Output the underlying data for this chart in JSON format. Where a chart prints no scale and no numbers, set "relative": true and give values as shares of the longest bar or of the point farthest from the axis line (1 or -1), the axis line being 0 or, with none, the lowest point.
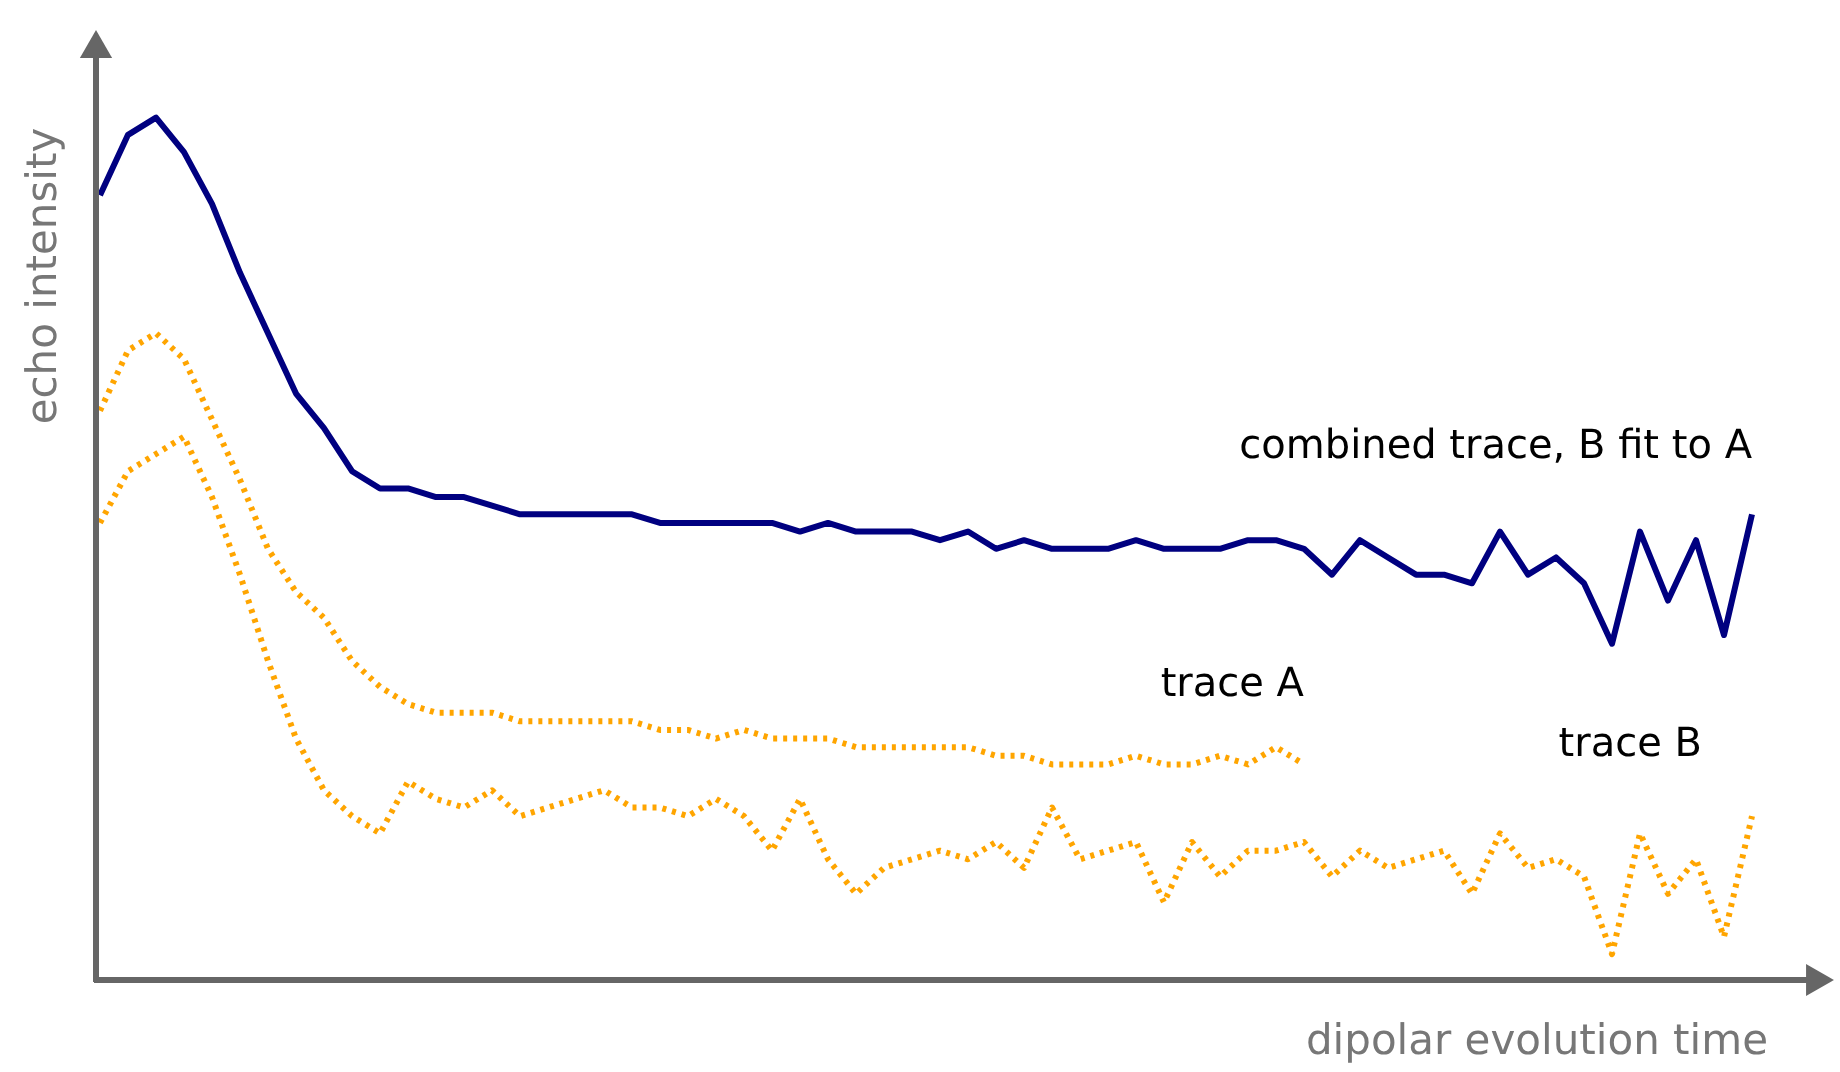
{
  "chart_data": {
    "type": "line",
    "relative": true,
    "xlabel": "dipolar evolution time",
    "ylabel": "echo intensity",
    "legend": false,
    "categories": [
      null,
      null,
      null,
      null,
      null,
      null,
      null,
      null,
      null,
      null,
      null,
      null,
      null,
      null,
      null,
      null,
      null,
      null,
      null,
      null,
      null,
      null,
      null,
      null,
      null,
      null,
      null,
      null,
      null,
      null,
      null,
      null,
      null,
      null,
      null,
      null,
      null,
      null,
      null,
      null,
      null,
      null,
      null,
      null,
      null,
      null,
      null,
      null,
      null,
      null,
      null,
      null,
      null,
      null,
      null,
      null,
      null,
      null,
      null,
      null
    ],
    "series": [
      {
        "name": "combined trace, B fit to A",
        "color": "#000080",
        "line_style": "solid",
        "values": [
          0.91,
          0.98,
          1.0,
          0.96,
          0.9,
          0.82,
          0.75,
          0.68,
          0.64,
          0.59,
          0.57,
          0.57,
          0.56,
          0.56,
          0.55,
          0.54,
          0.54,
          0.54,
          0.54,
          0.54,
          0.53,
          0.53,
          0.53,
          0.53,
          0.53,
          0.52,
          0.53,
          0.52,
          0.52,
          0.52,
          0.51,
          0.52,
          0.5,
          0.51,
          0.5,
          0.5,
          0.5,
          0.51,
          0.5,
          0.5,
          0.5,
          0.51,
          0.51,
          0.5,
          0.47,
          0.51,
          0.49,
          0.47,
          0.47,
          0.46,
          0.52,
          0.47,
          0.49,
          0.46,
          0.39,
          0.52,
          0.44,
          0.51,
          0.4,
          0.54
        ]
      },
      {
        "name": "trace A",
        "color": "#ffa500",
        "line_style": "dotted",
        "values": [
          0.66,
          0.73,
          0.75,
          0.72,
          0.65,
          0.58,
          0.5,
          0.45,
          0.42,
          0.37,
          0.34,
          0.32,
          0.31,
          0.31,
          0.31,
          0.3,
          0.3,
          0.3,
          0.3,
          0.3,
          0.29,
          0.29,
          0.28,
          0.29,
          0.28,
          0.28,
          0.28,
          0.27,
          0.27,
          0.27,
          0.27,
          0.27,
          0.26,
          0.26,
          0.25,
          0.25,
          0.25,
          0.26,
          0.25,
          0.25,
          0.26,
          0.25,
          0.27,
          0.25,
          null,
          null,
          null,
          null,
          null,
          null,
          null,
          null,
          null,
          null,
          null,
          null,
          null,
          null,
          null,
          null
        ]
      },
      {
        "name": "trace B",
        "color": "#ffa500",
        "line_style": "dotted",
        "values": [
          0.53,
          0.59,
          0.61,
          0.63,
          0.56,
          0.47,
          0.37,
          0.28,
          0.22,
          0.19,
          0.17,
          0.23,
          0.21,
          0.2,
          0.22,
          0.19,
          0.2,
          0.21,
          0.22,
          0.2,
          0.2,
          0.19,
          0.21,
          0.19,
          0.15,
          0.21,
          0.14,
          0.1,
          0.13,
          0.14,
          0.15,
          0.14,
          0.16,
          0.13,
          0.2,
          0.14,
          0.15,
          0.16,
          0.09,
          0.16,
          0.12,
          0.15,
          0.15,
          0.16,
          0.12,
          0.15,
          0.13,
          0.14,
          0.15,
          0.1,
          0.17,
          0.13,
          0.14,
          0.12,
          0.03,
          0.17,
          0.1,
          0.14,
          0.05,
          0.19
        ]
      }
    ]
  }
}
